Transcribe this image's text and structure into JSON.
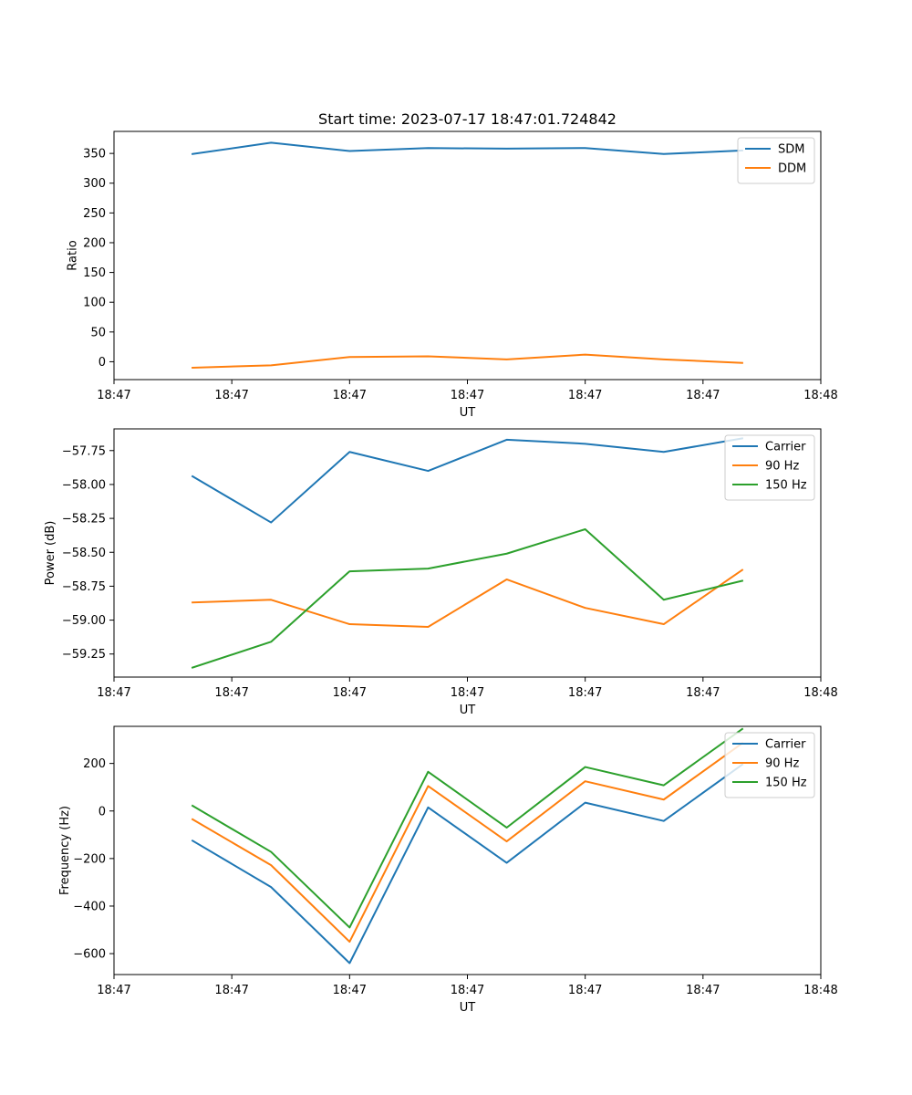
{
  "chart_data": [
    {
      "type": "line",
      "title": "Start time: 2023-07-17 18:47:01.724842",
      "xlabel": "UT",
      "ylabel": "Ratio",
      "x": [
        1,
        2,
        3,
        4,
        5,
        6,
        7,
        8
      ],
      "xlim": [
        0,
        9
      ],
      "x_tick_positions": [
        0,
        1.5,
        3,
        4.5,
        6,
        7.5,
        9
      ],
      "x_tick_labels": [
        "18:47",
        "18:47",
        "18:47",
        "18:47",
        "18:47",
        "18:47",
        "18:48"
      ],
      "ylim": [
        -30,
        387
      ],
      "y_ticks": [
        0,
        50,
        100,
        150,
        200,
        250,
        300,
        350
      ],
      "y_tick_labels": [
        "0",
        "50",
        "100",
        "150",
        "200",
        "250",
        "300",
        "350"
      ],
      "legend": "top-right",
      "series": [
        {
          "name": "SDM",
          "color": "#1f77b4",
          "values": [
            349,
            368,
            354,
            359,
            358,
            359,
            349,
            355
          ]
        },
        {
          "name": "DDM",
          "color": "#ff7f0e",
          "values": [
            -10,
            -6,
            8,
            9,
            4,
            12,
            4,
            -2
          ]
        }
      ]
    },
    {
      "type": "line",
      "title": "",
      "xlabel": "UT",
      "ylabel": "Power (dB)",
      "x": [
        1,
        2,
        3,
        4,
        5,
        6,
        7,
        8
      ],
      "xlim": [
        0,
        9
      ],
      "x_tick_positions": [
        0,
        1.5,
        3,
        4.5,
        6,
        7.5,
        9
      ],
      "x_tick_labels": [
        "18:47",
        "18:47",
        "18:47",
        "18:47",
        "18:47",
        "18:47",
        "18:48"
      ],
      "ylim": [
        -59.42,
        -57.59
      ],
      "y_ticks": [
        -59.25,
        -59.0,
        -58.75,
        -58.5,
        -58.25,
        -58.0,
        -57.75
      ],
      "y_tick_labels": [
        "−59.25",
        "−59.00",
        "−58.75",
        "−58.50",
        "−58.25",
        "−58.00",
        "−57.75"
      ],
      "legend": "top-right",
      "series": [
        {
          "name": "Carrier",
          "color": "#1f77b4",
          "values": [
            -57.94,
            -58.28,
            -57.76,
            -57.9,
            -57.67,
            -57.7,
            -57.76,
            -57.66
          ]
        },
        {
          "name": "90 Hz",
          "color": "#ff7f0e",
          "values": [
            -58.87,
            -58.85,
            -59.03,
            -59.05,
            -58.7,
            -58.91,
            -59.03,
            -58.63
          ]
        },
        {
          "name": "150 Hz",
          "color": "#2ca02c",
          "values": [
            -59.35,
            -59.16,
            -58.64,
            -58.62,
            -58.51,
            -58.33,
            -58.85,
            -58.71
          ]
        }
      ]
    },
    {
      "type": "line",
      "title": "",
      "xlabel": "UT",
      "ylabel": "Frequency (Hz)",
      "x": [
        1,
        2,
        3,
        4,
        5,
        6,
        7,
        8
      ],
      "xlim": [
        0,
        9
      ],
      "x_tick_positions": [
        0,
        1.5,
        3,
        4.5,
        6,
        7.5,
        9
      ],
      "x_tick_labels": [
        "18:47",
        "18:47",
        "18:47",
        "18:47",
        "18:47",
        "18:47",
        "18:48"
      ],
      "ylim": [
        -688,
        356
      ],
      "y_ticks": [
        -600,
        -400,
        -200,
        0,
        200
      ],
      "y_tick_labels": [
        "−600",
        "−400",
        "−200",
        "0",
        "200"
      ],
      "legend": "top-right",
      "series": [
        {
          "name": "Carrier",
          "color": "#1f77b4",
          "values": [
            -125,
            -320,
            -640,
            15,
            -218,
            35,
            -42,
            195
          ]
        },
        {
          "name": "90 Hz",
          "color": "#ff7f0e",
          "values": [
            -35,
            -228,
            -550,
            105,
            -128,
            125,
            48,
            285
          ]
        },
        {
          "name": "150 Hz",
          "color": "#2ca02c",
          "values": [
            22,
            -172,
            -490,
            165,
            -70,
            185,
            108,
            345
          ]
        }
      ]
    }
  ]
}
